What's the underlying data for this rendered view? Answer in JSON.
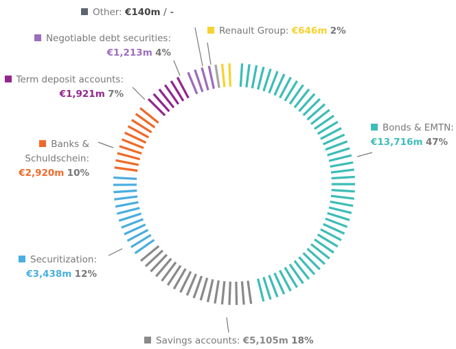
{
  "chart_data": {
    "type": "donut",
    "categories": [
      "Bonds & EMTN:",
      "Savings accounts:",
      "Securitization:",
      "Banks & Schuldschein:",
      "Term deposit accounts:",
      "Negotiable debt securities:",
      "Other:",
      "Renault Group:"
    ],
    "values": [
      13716,
      5105,
      3438,
      2920,
      1921,
      1213,
      140,
      646
    ],
    "value_labels": [
      "€13,716m",
      "€5,105m",
      "€3,438m",
      "€2,920m",
      "€1,921m",
      "€1,213m",
      "€140m",
      "€646m"
    ],
    "share_labels": [
      "47%",
      "18%",
      "12%",
      "10%",
      "7%",
      "4%",
      "/ -",
      "2%"
    ],
    "colors": [
      "#3dbdb7",
      "#8a8a8a",
      "#4aaee0",
      "#ee6a2a",
      "#93268f",
      "#9b6dbc",
      "#a5a5a5",
      "#f6d230"
    ]
  }
}
